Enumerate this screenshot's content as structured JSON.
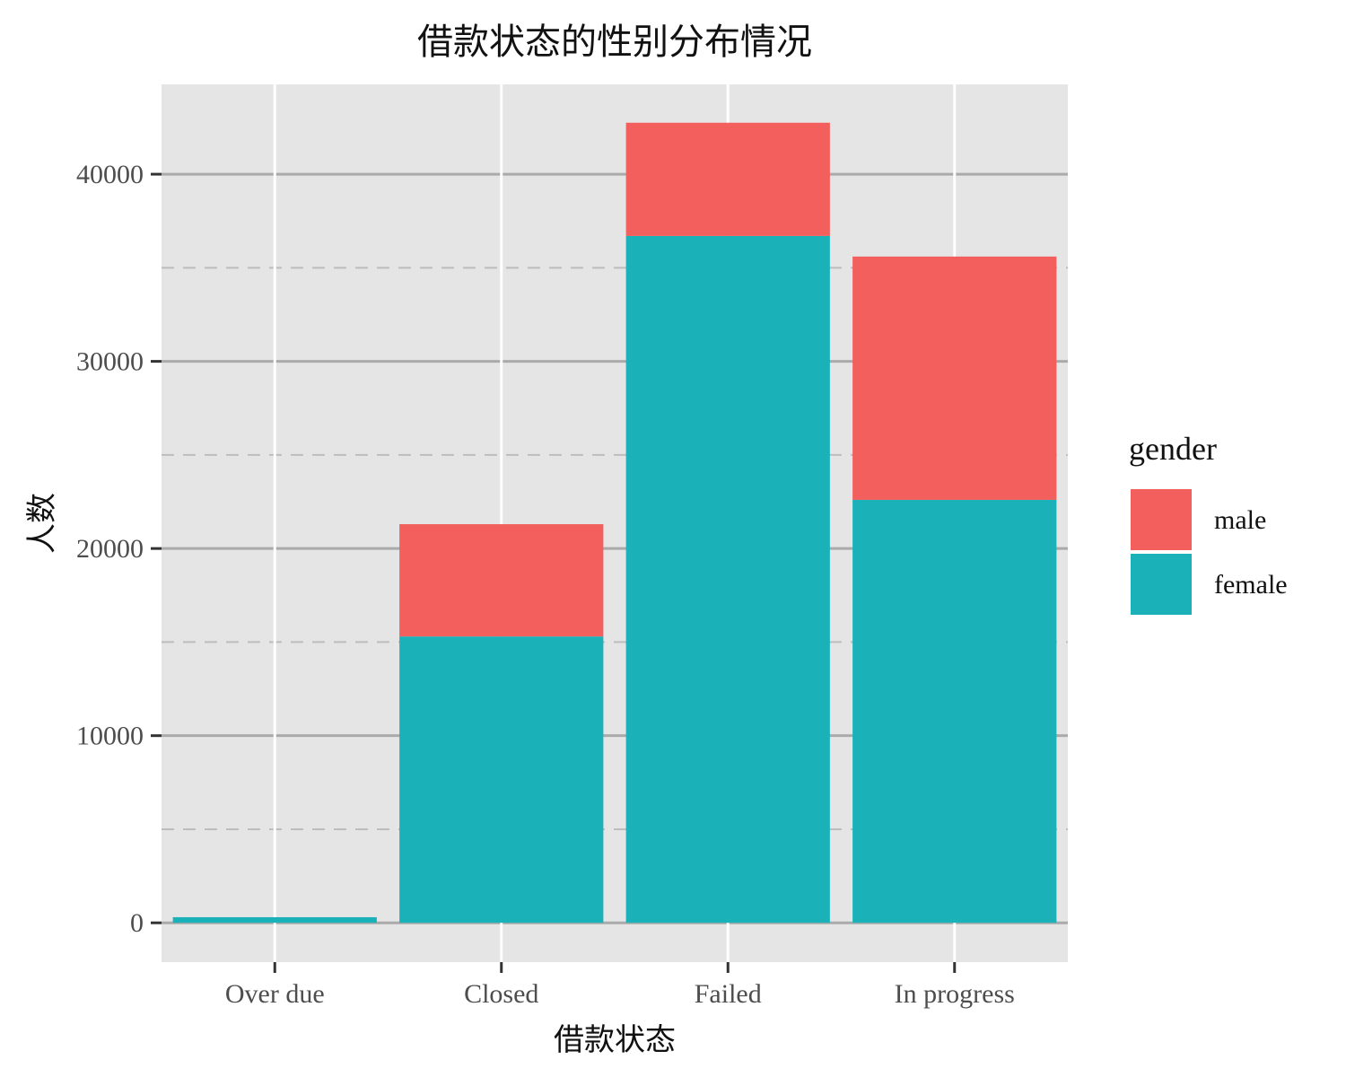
{
  "chart_data": {
    "type": "bar",
    "stacked": true,
    "title": "借款状态的性别分布情况",
    "xlabel": "借款状态",
    "ylabel": "人数",
    "categories": [
      "Over due",
      "Closed",
      "Failed",
      "In progress"
    ],
    "series": [
      {
        "name": "female",
        "values": [
          300,
          15300,
          36700,
          22600
        ]
      },
      {
        "name": "male",
        "values": [
          0,
          6000,
          6050,
          13000
        ]
      }
    ],
    "stack_order_bottom_to_top": [
      "female",
      "male"
    ],
    "ylim": [
      -2100,
      44800
    ],
    "yticks": [
      0,
      10000,
      20000,
      30000,
      40000
    ],
    "ytick_labels": [
      "0",
      "10000",
      "20000",
      "30000",
      "40000"
    ],
    "minor_gridlines_y": [
      5000,
      15000,
      25000,
      35000
    ],
    "grid": true,
    "legend": {
      "title": "gender",
      "position": "right",
      "entries": [
        "male",
        "female"
      ]
    },
    "colors": {
      "male": "#F25F5C",
      "female": "#1AB2B8",
      "panel_background": "#E5E5E5",
      "major_grid": "#AAAAAA",
      "minor_grid": "#BDBDBD",
      "vertical_grid": "#FFFFFF"
    }
  }
}
